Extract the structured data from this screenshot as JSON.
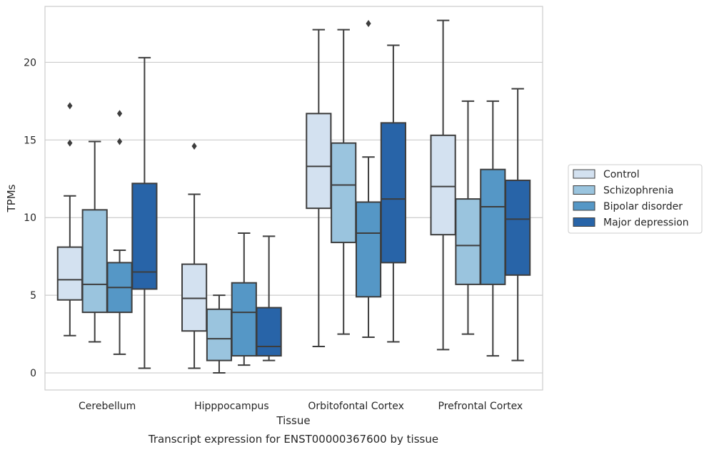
{
  "chart_data": {
    "type": "boxplot",
    "caption": "Transcript expression for ENST00000367600 by tissue",
    "xlabel": "Tissue",
    "ylabel": "TPMs",
    "ylim": [
      -1.1,
      23.6
    ],
    "yticks": [
      0,
      5,
      10,
      15,
      20
    ],
    "grid": "horizontal",
    "legend_position": "right",
    "categories": [
      "Cerebellum",
      "Hipppocampus",
      "Orbitofontal Cortex",
      "Prefrontal Cortex"
    ],
    "series": [
      {
        "name": "Control",
        "color": "#d3e1f0",
        "boxes": [
          {
            "whislo": 2.4,
            "q1": 4.7,
            "med": 6.0,
            "q3": 8.1,
            "whishi": 11.4,
            "fliers": [
              14.8,
              17.2
            ]
          },
          {
            "whislo": 0.3,
            "q1": 2.7,
            "med": 4.8,
            "q3": 7.0,
            "whishi": 11.5,
            "fliers": [
              14.6
            ]
          },
          {
            "whislo": 1.7,
            "q1": 10.6,
            "med": 13.3,
            "q3": 16.7,
            "whishi": 22.1,
            "fliers": []
          },
          {
            "whislo": 1.5,
            "q1": 8.9,
            "med": 12.0,
            "q3": 15.3,
            "whishi": 22.7,
            "fliers": []
          }
        ]
      },
      {
        "name": "Schizophrenia",
        "color": "#9ac4de",
        "boxes": [
          {
            "whislo": 2.0,
            "q1": 3.9,
            "med": 5.7,
            "q3": 10.5,
            "whishi": 14.9,
            "fliers": []
          },
          {
            "whislo": 0.0,
            "q1": 0.8,
            "med": 2.2,
            "q3": 4.1,
            "whishi": 5.0,
            "fliers": []
          },
          {
            "whislo": 2.5,
            "q1": 8.4,
            "med": 12.1,
            "q3": 14.8,
            "whishi": 22.1,
            "fliers": []
          },
          {
            "whislo": 2.5,
            "q1": 5.7,
            "med": 8.2,
            "q3": 11.2,
            "whishi": 17.5,
            "fliers": []
          }
        ]
      },
      {
        "name": "Bipolar disorder",
        "color": "#5597c6",
        "boxes": [
          {
            "whislo": 1.2,
            "q1": 3.9,
            "med": 5.5,
            "q3": 7.1,
            "whishi": 7.9,
            "fliers": [
              14.9,
              16.7
            ]
          },
          {
            "whislo": 0.5,
            "q1": 1.1,
            "med": 3.9,
            "q3": 5.8,
            "whishi": 9.0,
            "fliers": []
          },
          {
            "whislo": 2.3,
            "q1": 4.9,
            "med": 9.0,
            "q3": 11.0,
            "whishi": 13.9,
            "fliers": [
              22.5
            ]
          },
          {
            "whislo": 1.1,
            "q1": 5.7,
            "med": 10.7,
            "q3": 13.1,
            "whishi": 17.5,
            "fliers": []
          }
        ]
      },
      {
        "name": "Major depression",
        "color": "#2864a8",
        "boxes": [
          {
            "whislo": 0.3,
            "q1": 5.4,
            "med": 6.5,
            "q3": 12.2,
            "whishi": 20.3,
            "fliers": []
          },
          {
            "whislo": 0.8,
            "q1": 1.1,
            "med": 1.7,
            "q3": 4.2,
            "whishi": 8.8,
            "fliers": []
          },
          {
            "whislo": 2.0,
            "q1": 7.1,
            "med": 11.2,
            "q3": 16.1,
            "whishi": 21.1,
            "fliers": []
          },
          {
            "whislo": 0.8,
            "q1": 6.3,
            "med": 9.9,
            "q3": 12.4,
            "whishi": 18.3,
            "fliers": []
          }
        ]
      }
    ]
  }
}
